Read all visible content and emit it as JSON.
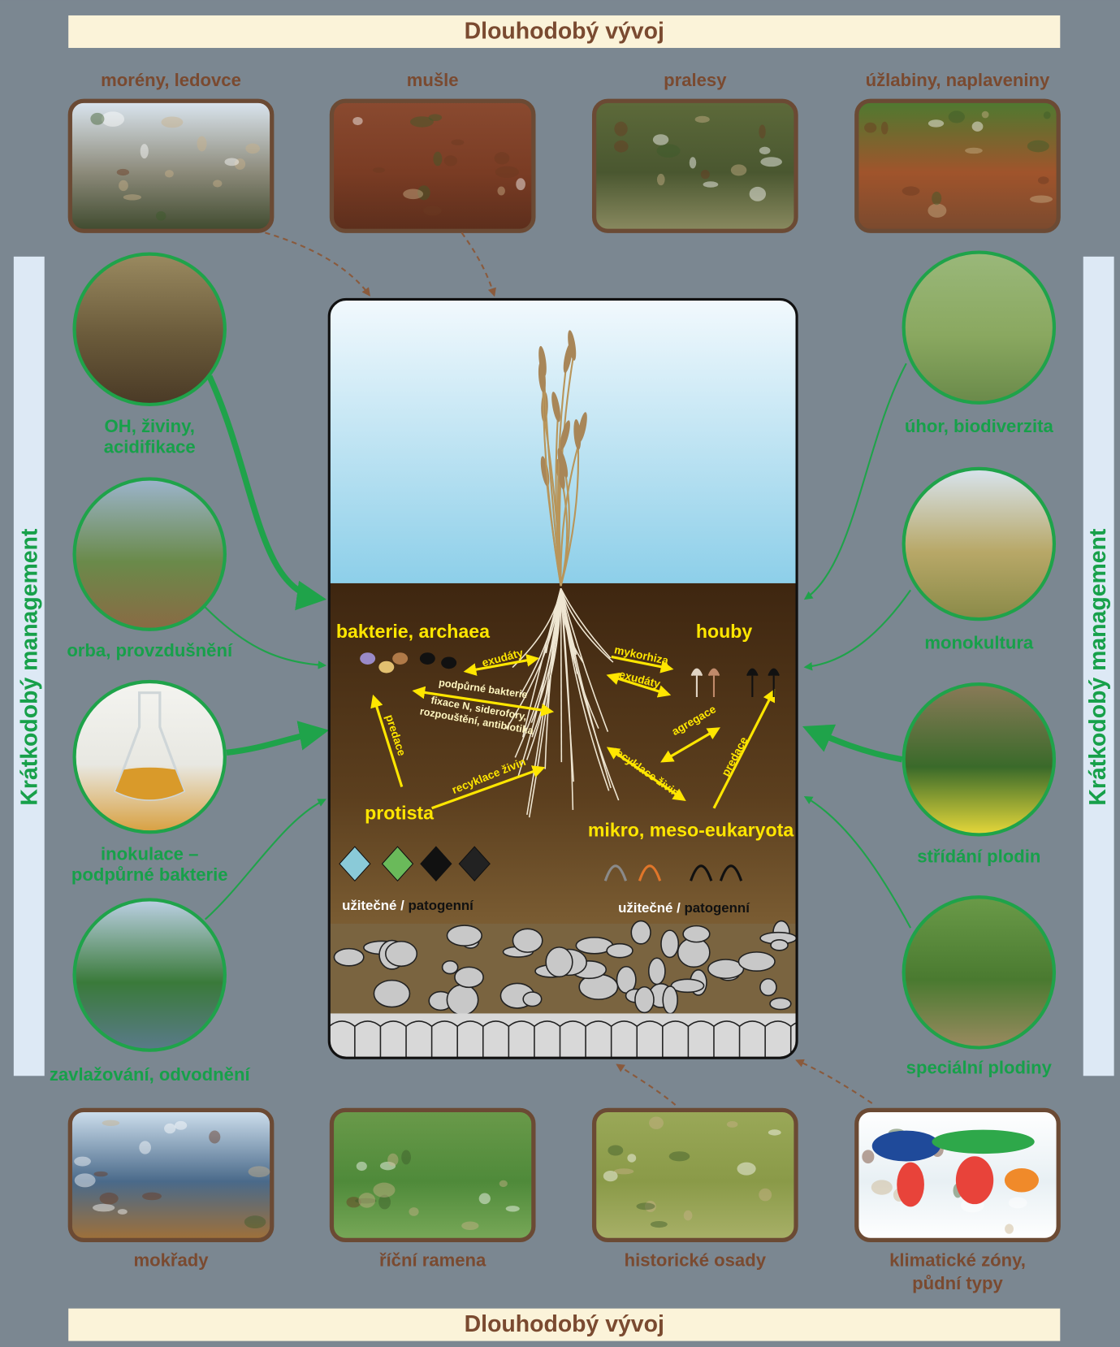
{
  "header": {
    "title": "Dlouhodobý vývoj"
  },
  "long_term_top": [
    {
      "label": [
        "morény, ledovce"
      ]
    },
    {
      "label": [
        "mušle"
      ]
    },
    {
      "label": [
        "pralesy"
      ]
    },
    {
      "label": [
        "úžlabiny, naplaveniny"
      ]
    }
  ],
  "short_term_left": {
    "title": "Krátkodobý management",
    "items": [
      {
        "label": [
          "OH, živiny,",
          "acidifikace"
        ]
      },
      {
        "label": [
          "orba, provzdušnění"
        ]
      },
      {
        "label": [
          "inokulace –",
          "podpůrné bakterie"
        ]
      },
      {
        "label": [
          "zavlažování, odvodnění"
        ]
      }
    ]
  },
  "short_term_right": {
    "title": "Krátkodobý management",
    "items": [
      {
        "label": [
          "úhor, biodiverzita"
        ]
      },
      {
        "label": [
          "monokultura"
        ]
      },
      {
        "label": [
          "střídání plodin"
        ]
      },
      {
        "label": [
          "speciální plodiny"
        ]
      }
    ]
  },
  "soil": {
    "groups": [
      {
        "label": "bakterie, archaea"
      },
      {
        "label": "houby"
      },
      {
        "label": "protista"
      },
      {
        "label": "mikro, meso-eukaryota"
      }
    ],
    "interactions": [
      {
        "label": [
          "exudáty"
        ]
      },
      {
        "label": [
          "podpůrné bakterie"
        ]
      },
      {
        "label": [
          "fixace N, siderofory,",
          "rozpouštění, antibiotika"
        ]
      },
      {
        "label": [
          "predace"
        ]
      },
      {
        "label": [
          "recyklace živin"
        ]
      },
      {
        "label": [
          "mykorhiza"
        ]
      },
      {
        "label": [
          "exudáty"
        ]
      },
      {
        "label": [
          "agregace"
        ]
      },
      {
        "label": [
          "recyklace živin"
        ]
      },
      {
        "label": [
          "predace"
        ]
      }
    ],
    "legends": [
      {
        "beneficial": "užitečné",
        "separator": "/",
        "pathogenic": "patogenní"
      },
      {
        "beneficial": "užitečné",
        "separator": "/",
        "pathogenic": "patogenní"
      }
    ]
  },
  "long_term_bottom": [
    {
      "label": [
        "mokřady"
      ]
    },
    {
      "label": [
        "říční ramena"
      ]
    },
    {
      "label": [
        "historické osady"
      ]
    },
    {
      "label": [
        "klimatické zóny,",
        "půdní typy"
      ]
    }
  ],
  "footer": {
    "title": "Dlouhodobý vývoj"
  }
}
